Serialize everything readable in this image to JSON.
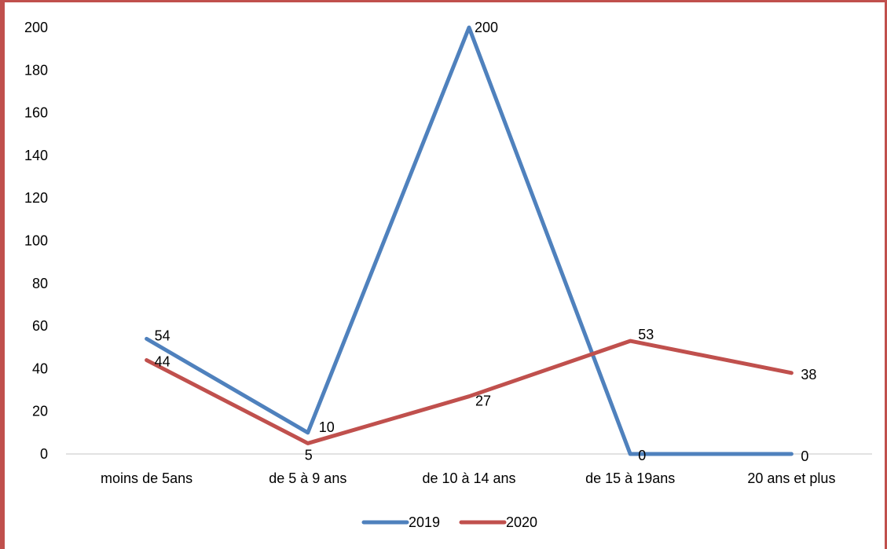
{
  "chart_data": {
    "type": "line",
    "categories": [
      "moins de 5ans",
      "de 5 à 9 ans",
      "de 10 à 14 ans",
      "de 15 à 19ans",
      "20 ans et plus"
    ],
    "series": [
      {
        "name": "2019",
        "values": [
          54,
          10,
          200,
          0,
          0
        ],
        "color": "#4f81bd"
      },
      {
        "name": "2020",
        "values": [
          44,
          5,
          27,
          53,
          38
        ],
        "color": "#c0504d"
      }
    ],
    "y_ticks": [
      "0",
      "20",
      "40",
      "60",
      "80",
      "100",
      "120",
      "140",
      "160",
      "180",
      "200"
    ],
    "ylim": [
      0,
      200
    ],
    "grid": false,
    "legend_position": "bottom",
    "title": "",
    "xlabel": "",
    "ylabel": ""
  },
  "frame_color": "#c0504d"
}
